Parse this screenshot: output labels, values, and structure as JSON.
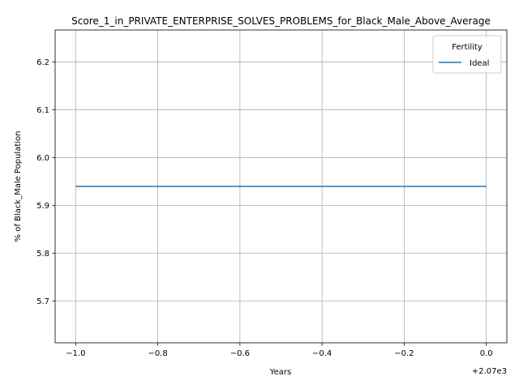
{
  "chart_data": {
    "type": "line",
    "title": "Score_1_in_PRIVATE_ENTERPRISE_SOLVES_PROBLEMS_for_Black_Male_Above_Average",
    "xlabel": "Years",
    "ylabel": "% of Black_Male Population",
    "x_offset_label": "+2.07e3",
    "xlim": [
      2068.95,
      2070.05
    ],
    "ylim": [
      5.613,
      6.267
    ],
    "x_ticks": [
      -1.0,
      -0.8,
      -0.6,
      -0.4,
      -0.2,
      0.0
    ],
    "x_tick_labels": [
      "−1.0",
      "−0.8",
      "−0.6",
      "−0.4",
      "−0.2",
      "0.0"
    ],
    "x_tick_base": 2070,
    "y_ticks": [
      5.7,
      5.8,
      5.9,
      6.0,
      6.1,
      6.2
    ],
    "y_tick_labels": [
      "5.7",
      "5.8",
      "5.9",
      "6.0",
      "6.1",
      "6.2"
    ],
    "grid": true,
    "legend": {
      "title": "Fertility",
      "placement": "top-right"
    },
    "series": [
      {
        "name": "Ideal",
        "color": "#1f77b4",
        "x": [
          2069,
          2070
        ],
        "y": [
          5.94,
          5.94
        ]
      }
    ]
  }
}
